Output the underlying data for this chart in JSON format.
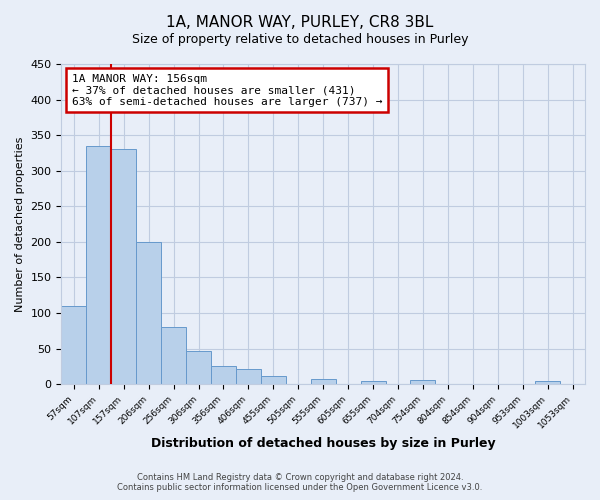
{
  "title": "1A, MANOR WAY, PURLEY, CR8 3BL",
  "subtitle": "Size of property relative to detached houses in Purley",
  "xlabel": "Distribution of detached houses by size in Purley",
  "ylabel": "Number of detached properties",
  "bar_labels": [
    "57sqm",
    "107sqm",
    "157sqm",
    "206sqm",
    "256sqm",
    "306sqm",
    "356sqm",
    "406sqm",
    "455sqm",
    "505sqm",
    "555sqm",
    "605sqm",
    "655sqm",
    "704sqm",
    "754sqm",
    "804sqm",
    "854sqm",
    "904sqm",
    "953sqm",
    "1003sqm",
    "1053sqm"
  ],
  "bar_values": [
    110,
    335,
    330,
    200,
    80,
    47,
    25,
    22,
    12,
    0,
    7,
    0,
    5,
    0,
    6,
    0,
    0,
    0,
    0,
    5,
    0
  ],
  "bar_color": "#b8d0ea",
  "bar_edge_color": "#6699cc",
  "ylim": [
    0,
    450
  ],
  "yticks": [
    0,
    50,
    100,
    150,
    200,
    250,
    300,
    350,
    400,
    450
  ],
  "property_line_idx": 2,
  "property_line_color": "#cc0000",
  "annotation_text": "1A MANOR WAY: 156sqm\n← 37% of detached houses are smaller (431)\n63% of semi-detached houses are larger (737) →",
  "annotation_box_edgecolor": "#cc0000",
  "footnote1": "Contains HM Land Registry data © Crown copyright and database right 2024.",
  "footnote2": "Contains public sector information licensed under the Open Government Licence v3.0.",
  "bg_color": "#e8eef8",
  "grid_color": "#c0cce0"
}
